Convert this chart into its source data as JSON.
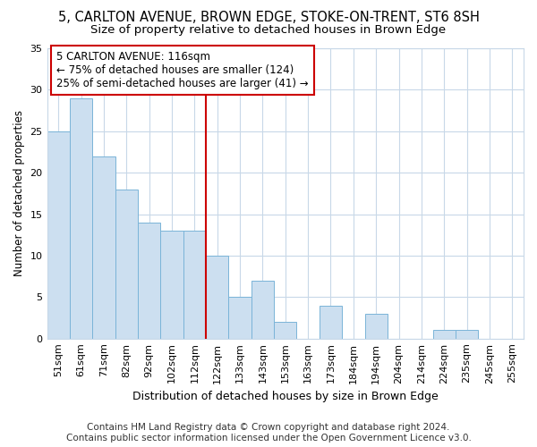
{
  "title": "5, CARLTON AVENUE, BROWN EDGE, STOKE-ON-TRENT, ST6 8SH",
  "subtitle": "Size of property relative to detached houses in Brown Edge",
  "xlabel": "Distribution of detached houses by size in Brown Edge",
  "ylabel": "Number of detached properties",
  "categories": [
    "51sqm",
    "61sqm",
    "71sqm",
    "82sqm",
    "92sqm",
    "102sqm",
    "112sqm",
    "122sqm",
    "133sqm",
    "143sqm",
    "153sqm",
    "163sqm",
    "173sqm",
    "184sqm",
    "194sqm",
    "204sqm",
    "214sqm",
    "224sqm",
    "235sqm",
    "245sqm",
    "255sqm"
  ],
  "values": [
    25,
    29,
    22,
    18,
    14,
    13,
    13,
    10,
    5,
    7,
    2,
    0,
    4,
    0,
    3,
    0,
    0,
    1,
    1,
    0,
    0
  ],
  "bar_color": "#ccdff0",
  "bar_edge_color": "#7ab4d8",
  "vline_index": 7,
  "vline_color": "#cc0000",
  "annotation_text": "5 CARLTON AVENUE: 116sqm\n← 75% of detached houses are smaller (124)\n25% of semi-detached houses are larger (41) →",
  "annotation_box_color": "#ffffff",
  "annotation_box_edge": "#cc0000",
  "ylim": [
    0,
    35
  ],
  "yticks": [
    0,
    5,
    10,
    15,
    20,
    25,
    30,
    35
  ],
  "footer": "Contains HM Land Registry data © Crown copyright and database right 2024.\nContains public sector information licensed under the Open Government Licence v3.0.",
  "bg_color": "#ffffff",
  "grid_color": "#c8d8e8",
  "title_fontsize": 10.5,
  "subtitle_fontsize": 9.5,
  "xlabel_fontsize": 9,
  "ylabel_fontsize": 8.5,
  "tick_fontsize": 8,
  "ann_fontsize": 8.5,
  "footer_fontsize": 7.5
}
